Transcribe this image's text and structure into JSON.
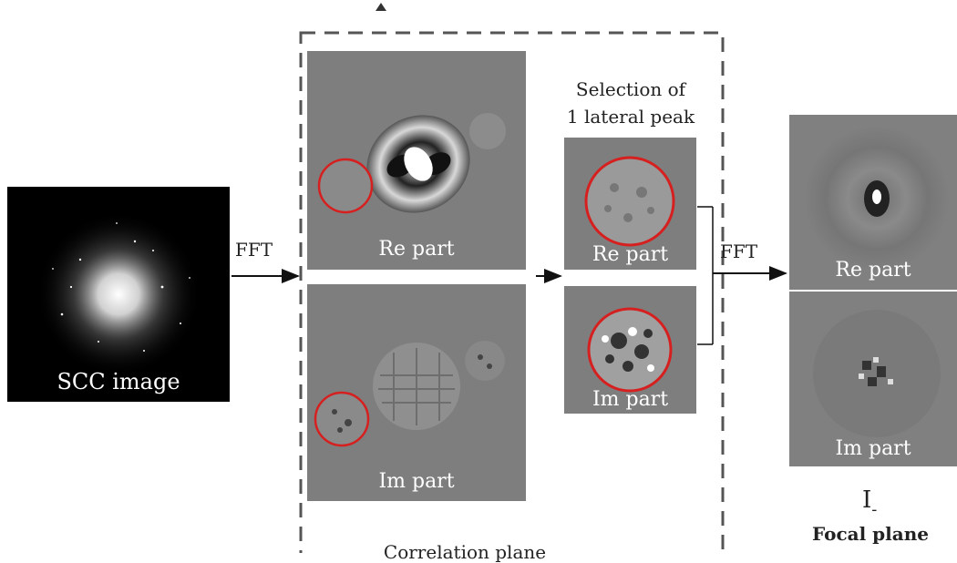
{
  "scc": {
    "label": "SCC image"
  },
  "arrows": {
    "fft1": "FFT",
    "fft2": "FFT"
  },
  "correlation": {
    "re_label": "Re part",
    "im_label": "Im part",
    "caption": "Correlation plane"
  },
  "selection": {
    "title_line1": "Selection of",
    "title_line2": "1 lateral peak",
    "re_label": "Re part",
    "im_label": "Im part"
  },
  "focal": {
    "re_label": "Re part",
    "im_label": "Im part",
    "symbol": "I",
    "subscript": "-",
    "caption": "Focal plane"
  },
  "colors": {
    "panel_gray": "#7e7e7e",
    "highlight_circle": "#d62020",
    "dashed_frame": "#555555"
  }
}
